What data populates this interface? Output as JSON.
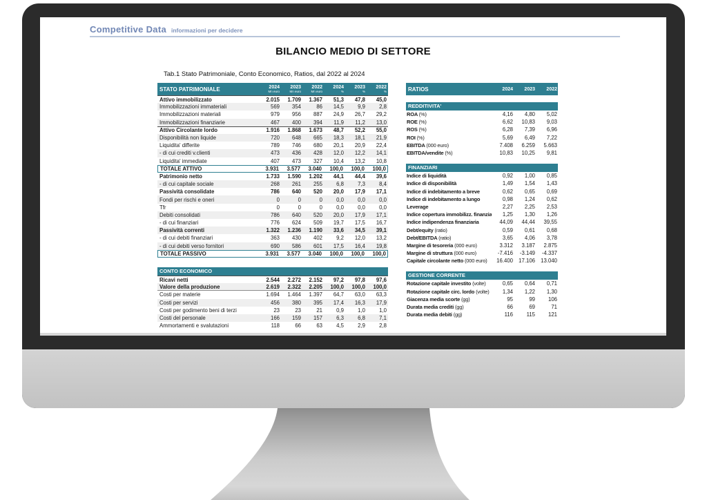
{
  "colors": {
    "accent_teal": "#2E7F91",
    "logo_blue": "#7187B5",
    "stripe_gray": "#EFEFEF",
    "bezel_dark": "#2B2B2B",
    "chin_gray": "#C8C8C8"
  },
  "logo": {
    "brand": "Competitive Data",
    "tagline": "informazioni per decidere"
  },
  "report": {
    "title": "BILANCIO MEDIO DI SETTORE",
    "subtitle": "Tab.1 Stato Patrimoniale, Conto Economico, Ratios, dal 2022 al 2024"
  },
  "balance_table": {
    "title": "STATO PATRIMONIALE",
    "columns": [
      {
        "year": "2024",
        "unit": "Mn euro"
      },
      {
        "year": "2023",
        "unit": "Mn euro"
      },
      {
        "year": "2022",
        "unit": "Mn euro"
      },
      {
        "year": "2024",
        "unit": "%"
      },
      {
        "year": "2023",
        "unit": "%"
      },
      {
        "year": "2022",
        "unit": "%"
      }
    ],
    "rows": [
      {
        "label": "Attivo immobilizzato",
        "style": "bold rule",
        "values": [
          "2.015",
          "1.709",
          "1.367",
          "51,3",
          "47,8",
          "45,0"
        ]
      },
      {
        "label": "Immobilizzazioni immateriali",
        "style": "",
        "values": [
          "569",
          "354",
          "86",
          "14,5",
          "9,9",
          "2,8"
        ]
      },
      {
        "label": "Immobilizzazioni materiali",
        "style": "",
        "values": [
          "979",
          "956",
          "887",
          "24,9",
          "26,7",
          "29,2"
        ]
      },
      {
        "label": "Immobilizzazioni finanziarie",
        "style": "",
        "values": [
          "467",
          "400",
          "394",
          "11,9",
          "11,2",
          "13,0"
        ]
      },
      {
        "label": "Attivo Circolante  lordo",
        "style": "bold rule",
        "values": [
          "1.916",
          "1.868",
          "1.673",
          "48,7",
          "52,2",
          "55,0"
        ]
      },
      {
        "label": "Disponibilità non liquide",
        "style": "",
        "values": [
          "720",
          "648",
          "665",
          "18,3",
          "18,1",
          "21,9"
        ]
      },
      {
        "label": "Liquidita'  differite",
        "style": "",
        "values": [
          "789",
          "746",
          "680",
          "20,1",
          "20,9",
          "22,4"
        ]
      },
      {
        "label": " - di cui crediti v.clienti",
        "style": "",
        "values": [
          "473",
          "436",
          "428",
          "12,0",
          "12,2",
          "14,1"
        ]
      },
      {
        "label": "Liquidita'  immediate",
        "style": "",
        "values": [
          "407",
          "473",
          "327",
          "10,4",
          "13,2",
          "10,8"
        ]
      },
      {
        "label": "TOTALE ATTIVO",
        "style": "total",
        "values": [
          "3.931",
          "3.577",
          "3.040",
          "100,0",
          "100,0",
          "100,0"
        ]
      },
      {
        "label": "Patrimonio netto",
        "style": "bold",
        "values": [
          "1.733",
          "1.590",
          "1.202",
          "44,1",
          "44,4",
          "39,6"
        ]
      },
      {
        "label": " - di cui capitale sociale",
        "style": "",
        "values": [
          "268",
          "261",
          "255",
          "6,8",
          "7,3",
          "8,4"
        ]
      },
      {
        "label": "Passività consolidate",
        "style": "bold",
        "values": [
          "786",
          "640",
          "520",
          "20,0",
          "17,9",
          "17,1"
        ]
      },
      {
        "label": "Fondi per rischi e oneri",
        "style": "",
        "values": [
          "0",
          "0",
          "0",
          "0,0",
          "0,0",
          "0,0"
        ]
      },
      {
        "label": "Tfr",
        "style": "",
        "values": [
          "0",
          "0",
          "0",
          "0,0",
          "0,0",
          "0,0"
        ]
      },
      {
        "label": "Debiti consolidati",
        "style": "",
        "values": [
          "786",
          "640",
          "520",
          "20,0",
          "17,9",
          "17,1"
        ]
      },
      {
        "label": " - di cui finanziari",
        "style": "",
        "values": [
          "776",
          "624",
          "509",
          "19,7",
          "17,5",
          "16,7"
        ]
      },
      {
        "label": "Passività correnti",
        "style": "bold",
        "values": [
          "1.322",
          "1.236",
          "1.190",
          "33,6",
          "34,5",
          "39,1"
        ]
      },
      {
        "label": " - di cui debiti finanziari",
        "style": "",
        "values": [
          "363",
          "430",
          "402",
          "9,2",
          "12,0",
          "13,2"
        ]
      },
      {
        "label": " - di cui debiti verso fornitori",
        "style": "",
        "values": [
          "690",
          "586",
          "601",
          "17,5",
          "16,4",
          "19,8"
        ]
      },
      {
        "label": "TOTALE PASSIVO",
        "style": "total",
        "values": [
          "3.931",
          "3.577",
          "3.040",
          "100,0",
          "100,0",
          "100,0"
        ]
      }
    ]
  },
  "income_table": {
    "title": "CONTO ECONOMICO",
    "rows": [
      {
        "label": "Ricavi netti",
        "style": "bold rule",
        "values": [
          "2.544",
          "2.272",
          "2.152",
          "97,2",
          "97,8",
          "97,6"
        ]
      },
      {
        "label": "Valore della produzione",
        "style": "bold rule-b",
        "values": [
          "2.619",
          "2.322",
          "2.205",
          "100,0",
          "100,0",
          "100,0"
        ]
      },
      {
        "label": "Costi per materie",
        "style": "",
        "values": [
          "1.694",
          "1.464",
          "1.397",
          "64,7",
          "63,0",
          "63,3"
        ]
      },
      {
        "label": "Costi per servizi",
        "style": "",
        "values": [
          "456",
          "380",
          "395",
          "17,4",
          "16,3",
          "17,9"
        ]
      },
      {
        "label": "Costi per godimento beni di terzi",
        "style": "",
        "values": [
          "23",
          "23",
          "21",
          "0,9",
          "1,0",
          "1,0"
        ]
      },
      {
        "label": "Costi del personale",
        "style": "",
        "values": [
          "166",
          "159",
          "157",
          "6,3",
          "6,8",
          "7,1"
        ]
      },
      {
        "label": "Ammortamenti e svalutazioni",
        "style": "",
        "values": [
          "118",
          "66",
          "63",
          "4,5",
          "2,9",
          "2,8"
        ]
      }
    ]
  },
  "ratios_table": {
    "title": "RATIOS",
    "years": [
      "2024",
      "2023",
      "2022"
    ],
    "sections": [
      {
        "title": "REDDITIVITA'",
        "rows": [
          {
            "label": "ROA",
            "unit": "(%)",
            "values": [
              "4,16",
              "4,80",
              "5,02"
            ]
          },
          {
            "label": "ROE",
            "unit": "(%)",
            "values": [
              "6,62",
              "10,83",
              "9,03"
            ]
          },
          {
            "label": "ROS",
            "unit": "(%)",
            "values": [
              "6,28",
              "7,39",
              "6,96"
            ]
          },
          {
            "label": "ROI",
            "unit": "(%)",
            "values": [
              "5,69",
              "6,49",
              "7,22"
            ]
          },
          {
            "label": "EBITDA",
            "unit": "(000 euro)",
            "values": [
              "7.408",
              "6.259",
              "5.663"
            ]
          },
          {
            "label": "EBITDA/vendite",
            "unit": "(%)",
            "values": [
              "10,83",
              "10,25",
              "9,81"
            ]
          }
        ]
      },
      {
        "title": "FINANZIARI",
        "rows": [
          {
            "label": "Indice di liquidità",
            "unit": "",
            "values": [
              "0,92",
              "1,00",
              "0,85"
            ]
          },
          {
            "label": "Indice di disponibilità",
            "unit": "",
            "values": [
              "1,49",
              "1,54",
              "1,43"
            ]
          },
          {
            "label": "Indice di indebitamento a breve",
            "unit": "",
            "values": [
              "0,62",
              "0,65",
              "0,69"
            ]
          },
          {
            "label": "Indice di indebitamento a lungo",
            "unit": "",
            "values": [
              "0,98",
              "1,24",
              "0,62"
            ]
          },
          {
            "label": "Leverage",
            "unit": "",
            "values": [
              "2,27",
              "2,25",
              "2,53"
            ]
          },
          {
            "label": "Indice copertura immobilizz. finanziarie",
            "unit": "",
            "values": [
              "1,25",
              "1,30",
              "1,26"
            ]
          },
          {
            "label": "Indice indipendenza finanziaria",
            "unit": "",
            "values": [
              "44,09",
              "44,44",
              "39,55"
            ]
          },
          {
            "label": "Debt/equity",
            "unit": "(ratio)",
            "values": [
              "0,59",
              "0,61",
              "0,68"
            ]
          },
          {
            "label": "Debt/EBITDA",
            "unit": "(ratio)",
            "values": [
              "3,65",
              "4,06",
              "3,78"
            ]
          },
          {
            "label": "Margine di tesoreria",
            "unit": "(000 euro)",
            "values": [
              "3.312",
              "3.187",
              "2.875"
            ]
          },
          {
            "label": "Margine di struttura",
            "unit": "(000 euro)",
            "values": [
              "-7.416",
              "-3.149",
              "-4.337"
            ]
          },
          {
            "label": "Capitale circolante netto",
            "unit": "(000 euro)",
            "values": [
              "16.400",
              "17.106",
              "13.040"
            ]
          }
        ]
      },
      {
        "title": "GESTIONE CORRENTE",
        "rows": [
          {
            "label": "Rotazione capitale investito",
            "unit": "(volte)",
            "values": [
              "0,65",
              "0,64",
              "0,71"
            ]
          },
          {
            "label": "Rotazione capitale circ. lordo",
            "unit": "(volte)",
            "values": [
              "1,34",
              "1,22",
              "1,30"
            ]
          },
          {
            "label": "Giacenza media scorte",
            "unit": "(gg)",
            "values": [
              "95",
              "99",
              "106"
            ]
          },
          {
            "label": "Durata media crediti",
            "unit": "(gg)",
            "values": [
              "66",
              "69",
              "71"
            ]
          },
          {
            "label": "Durata media debiti",
            "unit": "(gg)",
            "values": [
              "116",
              "115",
              "121"
            ]
          }
        ]
      }
    ]
  }
}
